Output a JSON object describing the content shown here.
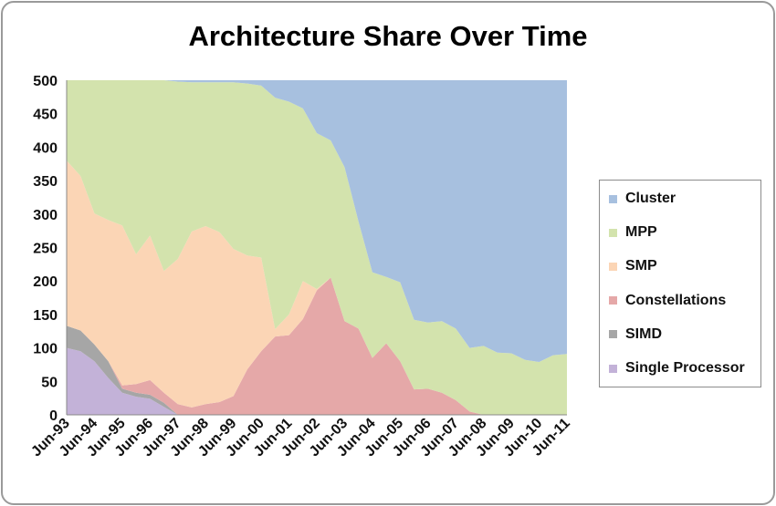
{
  "chart_data": {
    "type": "area",
    "stacked": true,
    "title": "Architecture Share Over Time",
    "xlabel": "",
    "ylabel": "",
    "ylim": [
      0,
      500
    ],
    "yticks": [
      0,
      50,
      100,
      150,
      200,
      250,
      300,
      350,
      400,
      450,
      500
    ],
    "grid": false,
    "legend_position": "right",
    "x": [
      "Jun-93",
      "Nov-93",
      "Jun-94",
      "Nov-94",
      "Jun-95",
      "Nov-95",
      "Jun-96",
      "Nov-96",
      "Jun-97",
      "Nov-97",
      "Jun-98",
      "Nov-98",
      "Jun-99",
      "Nov-99",
      "Jun-00",
      "Nov-00",
      "Jun-01",
      "Nov-01",
      "Jun-02",
      "Nov-02",
      "Jun-03",
      "Nov-03",
      "Jun-04",
      "Nov-04",
      "Jun-05",
      "Nov-05",
      "Jun-06",
      "Nov-06",
      "Jun-07",
      "Nov-07",
      "Jun-08",
      "Nov-08",
      "Jun-09",
      "Nov-09",
      "Jun-10",
      "Nov-10",
      "Jun-11"
    ],
    "x_tick_labels": [
      "Jun-93",
      "Jun-94",
      "Jun-95",
      "Jun-96",
      "Jun-97",
      "Jun-98",
      "Jun-99",
      "Jun-00",
      "Jun-01",
      "Jun-02",
      "Jun-03",
      "Jun-04",
      "Jun-05",
      "Jun-06",
      "Jun-07",
      "Jun-08",
      "Jun-09",
      "Jun-10",
      "Jun-11"
    ],
    "series": [
      {
        "name": "Single Processor",
        "color": "#c3b2d8",
        "values": [
          100,
          95,
          80,
          55,
          33,
          27,
          24,
          12,
          0,
          0,
          0,
          0,
          0,
          0,
          0,
          0,
          0,
          0,
          0,
          0,
          0,
          0,
          0,
          0,
          0,
          0,
          0,
          0,
          0,
          0,
          0,
          0,
          0,
          0,
          0,
          0,
          0
        ]
      },
      {
        "name": "SIMD",
        "color": "#a6a6a6",
        "values": [
          33,
          31,
          25,
          25,
          6,
          6,
          6,
          6,
          0,
          0,
          0,
          0,
          0,
          0,
          0,
          0,
          0,
          0,
          0,
          0,
          0,
          0,
          0,
          0,
          0,
          0,
          0,
          0,
          0,
          0,
          0,
          0,
          0,
          0,
          0,
          0,
          0
        ]
      },
      {
        "name": "Constellations",
        "color": "#e5a8a8",
        "values": [
          0,
          0,
          0,
          0,
          5,
          13,
          22,
          15,
          16,
          11,
          16,
          19,
          28,
          68,
          95,
          117,
          119,
          143,
          186,
          205,
          140,
          129,
          85,
          107,
          80,
          38,
          39,
          33,
          22,
          5,
          0,
          0,
          0,
          0,
          0,
          0,
          0
        ]
      },
      {
        "name": "SMP",
        "color": "#fbd5b5",
        "values": [
          247,
          231,
          196,
          211,
          239,
          194,
          216,
          182,
          217,
          263,
          266,
          254,
          220,
          170,
          140,
          11,
          31,
          57,
          2,
          0,
          0,
          0,
          0,
          0,
          0,
          0,
          0,
          0,
          0,
          0,
          0,
          0,
          0,
          0,
          0,
          0,
          0
        ]
      },
      {
        "name": "MPP",
        "color": "#d3e3ad",
        "values": [
          120,
          143,
          199,
          209,
          217,
          260,
          232,
          285,
          265,
          223,
          215,
          224,
          249,
          257,
          257,
          346,
          318,
          258,
          233,
          205,
          230,
          160,
          128,
          99,
          118,
          104,
          99,
          107,
          107,
          95,
          103,
          93,
          92,
          82,
          79,
          89,
          91
        ]
      },
      {
        "name": "Cluster",
        "color": "#a7c0df",
        "values": [
          0,
          0,
          0,
          0,
          0,
          0,
          0,
          0,
          2,
          3,
          3,
          3,
          3,
          5,
          8,
          26,
          32,
          42,
          79,
          90,
          130,
          211,
          287,
          294,
          302,
          358,
          362,
          360,
          371,
          400,
          397,
          407,
          408,
          418,
          421,
          411,
          409
        ]
      }
    ]
  }
}
